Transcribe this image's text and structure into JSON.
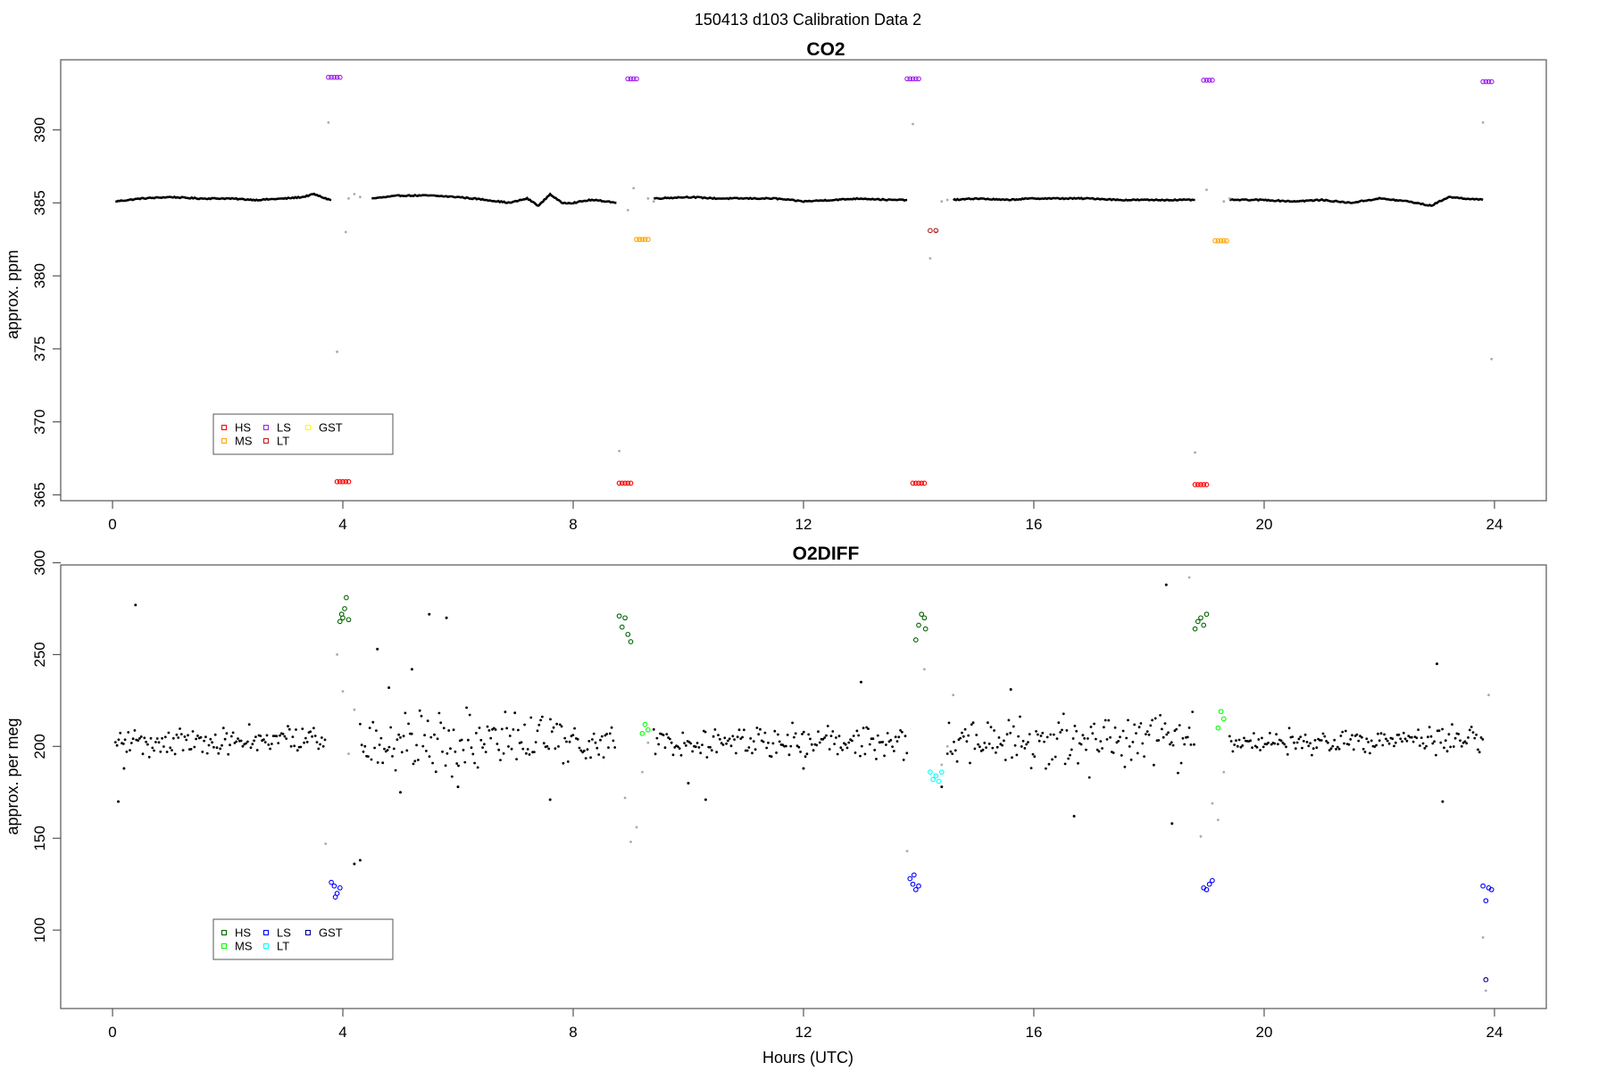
{
  "figure": {
    "title": "150413   d103   Calibration Data 2",
    "xlabel": "Hours (UTC)"
  },
  "chart_data": [
    {
      "type": "scatter",
      "title": "CO2",
      "ylabel": "approx. ppm",
      "xlabel": "",
      "xlim": [
        -0.9,
        24.9
      ],
      "ylim": [
        364.6,
        394.8
      ],
      "xticks": [
        0,
        4,
        8,
        12,
        16,
        20,
        24
      ],
      "yticks": [
        365,
        370,
        375,
        380,
        385,
        390
      ],
      "grid": false,
      "legend": {
        "placement": "bottom-left",
        "entries": [
          {
            "label": "HS",
            "color": "#ff0000"
          },
          {
            "label": "MS",
            "color": "#ffa500"
          },
          {
            "label": "LS",
            "color": "#a020f0"
          },
          {
            "label": "LT",
            "color": "#b22222"
          },
          {
            "label": "GST",
            "color": "#ffff00"
          }
        ]
      },
      "baseline": {
        "color": "#000000",
        "segments": [
          {
            "x": [
              0.05,
              0.5,
              1.0,
              1.5,
              2.0,
              2.5,
              3.0,
              3.3,
              3.5,
              3.7,
              3.8
            ],
            "y": [
              385.1,
              385.3,
              385.4,
              385.3,
              385.3,
              385.2,
              385.3,
              385.4,
              385.6,
              385.3,
              385.2
            ]
          },
          {
            "x": [
              4.5,
              5.0,
              5.5,
              6.0,
              6.5,
              6.9,
              7.2,
              7.4,
              7.6,
              7.8,
              8.0,
              8.3,
              8.6,
              8.75
            ],
            "y": [
              385.3,
              385.5,
              385.5,
              385.4,
              385.2,
              385.0,
              385.3,
              384.8,
              385.6,
              385.0,
              385.0,
              385.2,
              385.1,
              385.0
            ]
          },
          {
            "x": [
              9.4,
              10.0,
              10.5,
              11.0,
              11.5,
              12.0,
              12.5,
              13.0,
              13.5,
              13.8
            ],
            "y": [
              385.3,
              385.4,
              385.3,
              385.3,
              385.3,
              385.1,
              385.2,
              385.3,
              385.2,
              385.2
            ]
          },
          {
            "x": [
              14.6,
              15.0,
              15.5,
              16.0,
              16.5,
              17.0,
              17.5,
              18.0,
              18.5,
              18.8
            ],
            "y": [
              385.2,
              385.3,
              385.2,
              385.3,
              385.3,
              385.3,
              385.2,
              385.2,
              385.2,
              385.2
            ]
          },
          {
            "x": [
              19.4,
              20.0,
              20.5,
              21.0,
              21.5,
              22.0,
              22.5,
              22.9,
              23.2,
              23.5,
              23.8
            ],
            "y": [
              385.2,
              385.2,
              385.1,
              385.2,
              385.0,
              385.3,
              385.1,
              384.8,
              385.4,
              385.3,
              385.2
            ]
          }
        ]
      },
      "gray_points": {
        "color": "#aaaaaa",
        "x": [
          3.75,
          3.9,
          4.05,
          4.1,
          4.2,
          4.3,
          8.8,
          8.95,
          9.05,
          9.3,
          9.4,
          13.9,
          14.2,
          14.3,
          14.4,
          14.5,
          18.8,
          19.0,
          19.3,
          19.4,
          23.8,
          23.95
        ],
        "y": [
          390.5,
          374.8,
          383.0,
          385.3,
          385.6,
          385.4,
          368.0,
          384.5,
          386.0,
          385.3,
          385.1,
          390.4,
          381.2,
          383.0,
          385.1,
          385.2,
          367.9,
          385.9,
          385.1,
          385.3,
          390.5,
          374.3
        ]
      },
      "series": [
        {
          "name": "HS",
          "color": "#ff0000",
          "x": [
            3.9,
            3.95,
            4.0,
            4.05,
            4.1,
            8.8,
            8.85,
            8.9,
            8.95,
            9.0,
            13.9,
            13.95,
            14.0,
            14.05,
            14.1,
            18.8,
            18.85,
            18.9,
            18.95,
            19.0
          ],
          "y": [
            365.9,
            365.9,
            365.9,
            365.9,
            365.9,
            365.8,
            365.8,
            365.8,
            365.8,
            365.8,
            365.8,
            365.8,
            365.8,
            365.8,
            365.8,
            365.7,
            365.7,
            365.7,
            365.7,
            365.7
          ]
        },
        {
          "name": "MS",
          "color": "#ffa500",
          "x": [
            9.1,
            9.15,
            9.2,
            9.25,
            9.3,
            19.15,
            19.2,
            19.25,
            19.3,
            19.35
          ],
          "y": [
            382.5,
            382.5,
            382.5,
            382.5,
            382.5,
            382.4,
            382.4,
            382.4,
            382.4,
            382.4
          ]
        },
        {
          "name": "LS",
          "color": "#a020f0",
          "x": [
            3.75,
            3.8,
            3.85,
            3.9,
            3.95,
            8.95,
            9.0,
            9.05,
            9.1,
            13.8,
            13.85,
            13.9,
            13.95,
            14.0,
            18.95,
            19.0,
            19.05,
            19.1,
            23.8,
            23.85,
            23.9,
            23.95
          ],
          "y": [
            393.6,
            393.6,
            393.6,
            393.6,
            393.6,
            393.5,
            393.5,
            393.5,
            393.5,
            393.5,
            393.5,
            393.5,
            393.5,
            393.5,
            393.4,
            393.4,
            393.4,
            393.4,
            393.3,
            393.3,
            393.3,
            393.3
          ]
        },
        {
          "name": "LT",
          "color": "#b22222",
          "x": [
            14.2,
            14.3
          ],
          "y": [
            383.1,
            383.1
          ]
        }
      ]
    },
    {
      "type": "scatter",
      "title": "O2DIFF",
      "ylabel": "approx. per meg",
      "xlabel": "Hours (UTC)",
      "xlim": [
        -0.9,
        24.9
      ],
      "ylim": [
        57.3,
        298.8
      ],
      "xticks": [
        0,
        4,
        8,
        12,
        16,
        20,
        24
      ],
      "yticks": [
        100,
        150,
        200,
        250,
        300
      ],
      "grid": false,
      "legend": {
        "placement": "bottom-left",
        "entries": [
          {
            "label": "HS",
            "color": "#006400"
          },
          {
            "label": "MS",
            "color": "#00ff00"
          },
          {
            "label": "LS",
            "color": "#0000ff"
          },
          {
            "label": "LT",
            "color": "#00ffff"
          },
          {
            "label": "GST",
            "color": "#00008b"
          }
        ]
      },
      "baseline": {
        "color": "#000000",
        "center": 203,
        "segments": [
          [
            0.05,
            3.7
          ],
          [
            4.3,
            8.75
          ],
          [
            9.4,
            13.8
          ],
          [
            14.5,
            18.8
          ],
          [
            19.4,
            23.8
          ]
        ],
        "spread": [
          [
            0,
            4,
            6
          ],
          [
            4,
            8,
            12
          ],
          [
            8,
            14,
            7
          ],
          [
            14,
            16,
            8
          ],
          [
            16,
            19,
            12
          ],
          [
            19,
            24,
            5
          ]
        ]
      },
      "black_outliers": {
        "x": [
          0.1,
          0.2,
          0.4,
          4.6,
          4.8,
          5.0,
          5.2,
          5.5,
          5.8,
          6.0,
          7.6,
          10.0,
          10.3,
          12.0,
          13.0,
          14.4,
          15.6,
          16.7,
          18.3,
          18.4,
          23.0,
          23.1,
          4.2,
          4.3
        ],
        "y": [
          170,
          188,
          277,
          253,
          232,
          175,
          242,
          272,
          270,
          178,
          171,
          180,
          171,
          188,
          235,
          178,
          231,
          162,
          288,
          158,
          245,
          170,
          136,
          138
        ]
      },
      "gray_points": {
        "color": "#aaaaaa",
        "x": [
          3.7,
          3.9,
          4.0,
          4.1,
          4.2,
          8.9,
          9.0,
          9.1,
          9.2,
          9.3,
          13.8,
          14.1,
          14.4,
          14.5,
          14.6,
          18.7,
          18.9,
          19.1,
          19.2,
          19.3,
          23.8,
          23.85,
          23.9
        ],
        "y": [
          147,
          250,
          230,
          196,
          220,
          172,
          148,
          156,
          186,
          202,
          143,
          242,
          190,
          200,
          228,
          292,
          151,
          169,
          160,
          186,
          96,
          67,
          228
        ]
      },
      "series": [
        {
          "name": "HS",
          "color": "#006400",
          "x": [
            3.95,
            3.98,
            4.0,
            4.03,
            4.06,
            4.1,
            8.8,
            8.85,
            8.9,
            8.95,
            9.0,
            13.95,
            14.0,
            14.05,
            14.1,
            14.12,
            18.8,
            18.85,
            18.9,
            18.95,
            19.0
          ],
          "y": [
            268,
            272,
            270,
            275,
            281,
            269,
            271,
            265,
            270,
            261,
            257,
            258,
            266,
            272,
            270,
            264,
            264,
            268,
            270,
            266,
            272
          ]
        },
        {
          "name": "MS",
          "color": "#00ff00",
          "x": [
            9.2,
            9.25,
            9.3,
            19.2,
            19.25,
            19.3
          ],
          "y": [
            207,
            212,
            209,
            210,
            219,
            215
          ]
        },
        {
          "name": "LS",
          "color": "#0000ff",
          "x": [
            3.8,
            3.85,
            3.9,
            3.95,
            3.87,
            13.85,
            13.9,
            13.95,
            14.0,
            13.92,
            18.95,
            19.0,
            19.05,
            19.1,
            23.8,
            23.85,
            23.9,
            23.95
          ],
          "y": [
            126,
            124,
            120,
            123,
            118,
            128,
            125,
            122,
            124,
            130,
            123,
            122,
            125,
            127,
            124,
            116,
            123,
            122
          ]
        },
        {
          "name": "LT",
          "color": "#00ffff",
          "x": [
            14.2,
            14.25,
            14.3,
            14.35,
            14.4
          ],
          "y": [
            186,
            182,
            184,
            181,
            186
          ]
        },
        {
          "name": "GST",
          "color": "#00008b",
          "x": [
            23.85
          ],
          "y": [
            73
          ]
        }
      ]
    }
  ]
}
